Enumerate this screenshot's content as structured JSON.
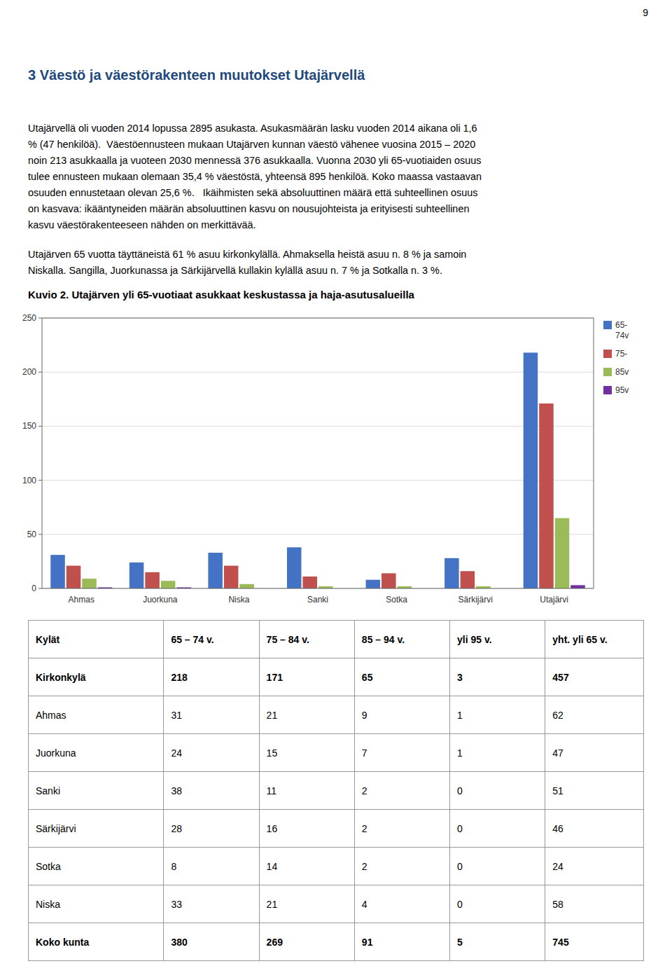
{
  "page_number": "9",
  "heading": "3 Väestö ja väestörakenteen muutokset Utajärvellä",
  "paragraphs": [
    [
      "Utajärvellä oli vuoden 2014 lopussa 2895 asukasta. Asukasmäärän lasku vuoden 2014 aikana oli 1,6",
      "% (47 henkilöä).  Väestöennusteen mukaan Utajärven kunnan väestö vähenee vuosina 2015 – 2020",
      "noin 213 asukkaalla ja vuoteen 2030 mennessä 376 asukkaalla. Vuonna 2030 yli 65-vuotiaiden osuus",
      "tulee ennusteen mukaan olemaan 35,4 % väestöstä, yhteensä 895 henkilöä. Koko maassa vastaavan",
      "osuuden ennustetaan olevan 25,6 %.   Ikäihmisten sekä absoluuttinen määrä että suhteellinen osuus",
      "on kasvava: ikääntyneiden määrän absoluuttinen kasvu on nousujohteista ja erityisesti suhteellinen",
      "kasvu väestörakenteeseen nähden on merkittävää."
    ],
    [
      "Utajärven 65 vuotta täyttäneistä 61 % asuu kirkonkylällä. Ahmaksella heistä asuu n. 8 % ja samoin",
      "Niskalla. Sangilla, Juorkunassa ja Särkijärvellä kullakin kylällä asuu n. 7 % ja Sotkalla n. 3 %."
    ]
  ],
  "chart_data": {
    "type": "bar",
    "title": "Kuvio 2. Utajärven yli 65-vuotiaat asukkaat keskustassa ja haja-asutusalueilla",
    "categories": [
      "Ahmas",
      "Juorkuna",
      "Niska",
      "Sanki",
      "Sotka",
      "Särkijärvi",
      "Utajärvi"
    ],
    "series": [
      {
        "name": "65-\n74v",
        "color": "#4472C4",
        "values": [
          31,
          24,
          33,
          38,
          8,
          28,
          218
        ]
      },
      {
        "name": "75-",
        "color": "#C0504D",
        "values": [
          21,
          15,
          21,
          11,
          14,
          16,
          171
        ]
      },
      {
        "name": "85v",
        "color": "#9BBB59",
        "values": [
          9,
          7,
          4,
          2,
          2,
          2,
          65
        ]
      },
      {
        "name": "95v",
        "color": "#7030A0",
        "values": [
          1,
          1,
          0,
          0,
          0,
          0,
          3
        ]
      }
    ],
    "ylim": [
      0,
      250
    ],
    "yticks": [
      0,
      50,
      100,
      150,
      200,
      250
    ],
    "grid": true,
    "legend": "right"
  },
  "table": {
    "headers": [
      "Kylät",
      "65 – 74 v.",
      "75 – 84 v.",
      "85 – 94 v.",
      "yli 95 v.",
      "yht. yli 65 v."
    ],
    "rows": [
      [
        "Kirkonkylä",
        "218",
        "171",
        "65",
        "3",
        "457"
      ],
      [
        "Ahmas",
        "31",
        "21",
        "9",
        "1",
        "62"
      ],
      [
        "Juorkuna",
        "24",
        "15",
        "7",
        "1",
        "47"
      ],
      [
        "Sanki",
        "38",
        "11",
        "2",
        "0",
        "51"
      ],
      [
        "Särkijärvi",
        "28",
        "16",
        "2",
        "0",
        "46"
      ],
      [
        "Sotka",
        "8",
        "14",
        "2",
        "0",
        "24"
      ],
      [
        "Niska",
        "33",
        "21",
        "4",
        "0",
        "58"
      ],
      [
        "Koko kunta",
        "380",
        "269",
        "91",
        "5",
        "745"
      ]
    ]
  }
}
